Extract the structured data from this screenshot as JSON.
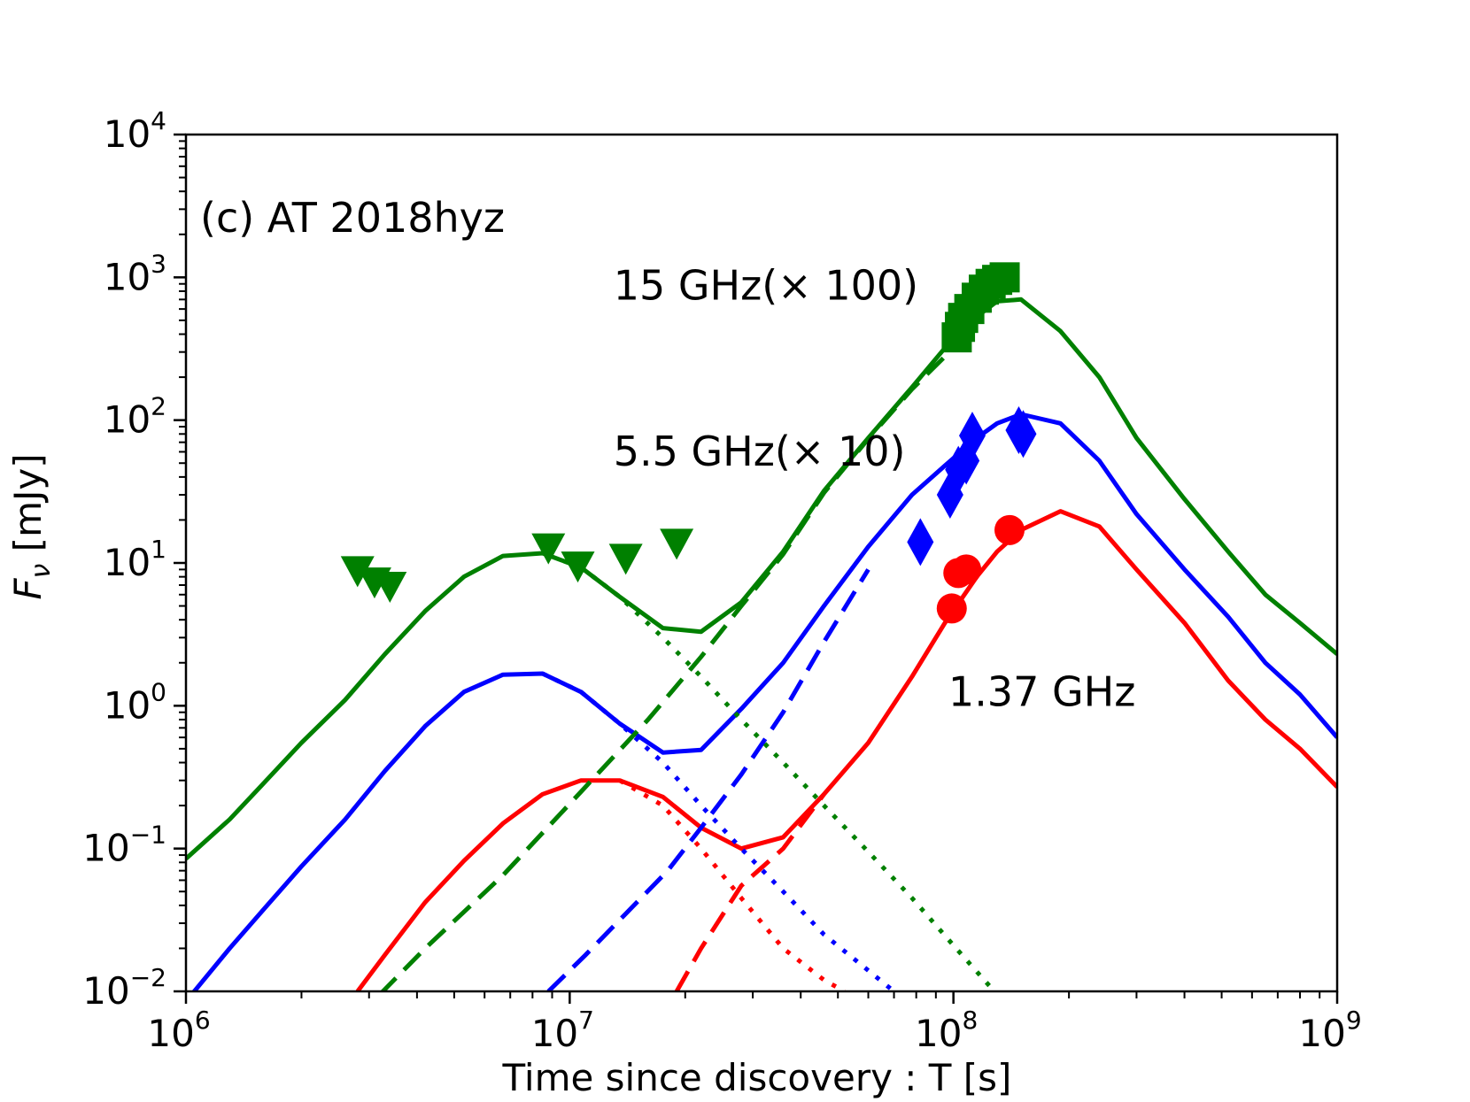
{
  "chart_data": {
    "type": "line",
    "title": "",
    "panel_label": "(c) AT 2018hyz",
    "xlabel": "Time since discovery : T [s]",
    "ylabel_symbol": "F",
    "ylabel_subscript": "ν",
    "ylabel_unit": " [mJy]",
    "xscale": "log",
    "yscale": "log",
    "xlim": [
      1000000,
      1000000000
    ],
    "ylim": [
      0.01,
      10000
    ],
    "x_ticks": [
      {
        "value": 1000000,
        "base": "10",
        "exp": "6"
      },
      {
        "value": 10000000,
        "base": "10",
        "exp": "7"
      },
      {
        "value": 100000000,
        "base": "10",
        "exp": "8"
      },
      {
        "value": 1000000000,
        "base": "10",
        "exp": "9"
      }
    ],
    "y_ticks": [
      {
        "value": 0.01,
        "base": "10",
        "exp": "−2"
      },
      {
        "value": 0.1,
        "base": "10",
        "exp": "−1"
      },
      {
        "value": 1,
        "base": "10",
        "exp": "0"
      },
      {
        "value": 10,
        "base": "10",
        "exp": "1"
      },
      {
        "value": 100,
        "base": "10",
        "exp": "2"
      },
      {
        "value": 1000,
        "base": "10",
        "exp": "3"
      },
      {
        "value": 10000,
        "base": "10",
        "exp": "4"
      }
    ],
    "series_labels": [
      {
        "text": "15 GHz(× 100)",
        "x": 13000000,
        "y": 700
      },
      {
        "text": "5.5 GHz(× 10)",
        "x": 13000000,
        "y": 48
      },
      {
        "text": "1.37 GHz",
        "x": 97000000,
        "y": 1.0
      }
    ],
    "series": [
      {
        "name": "15 GHz (× 100)",
        "color": "#008000",
        "model_total": {
          "x": [
            1000000,
            1300000,
            1600000,
            2000000,
            2600000,
            3300000,
            4200000,
            5300000,
            6700000,
            8500000,
            10700000,
            13500000,
            17500000,
            22000000,
            28000000,
            36000000,
            46000000,
            60000000,
            78000000,
            95000000,
            115000000,
            130000000,
            150000000,
            190000000,
            240000000,
            300000000,
            400000000,
            520000000,
            650000000,
            800000000,
            1000000000
          ],
          "y": [
            0.085,
            0.16,
            0.29,
            0.55,
            1.1,
            2.3,
            4.6,
            8.0,
            11.2,
            11.7,
            9.3,
            5.8,
            3.5,
            3.3,
            5.3,
            12,
            32,
            75,
            170,
            320,
            530,
            680,
            700,
            420,
            200,
            75,
            28,
            12,
            6,
            3.8,
            2.3
          ]
        },
        "model_early": {
          "x": [
            10700000,
            13500000,
            17500000,
            22000000,
            28000000,
            36000000,
            46000000,
            60000000,
            78000000,
            100000000,
            130000000
          ],
          "y": [
            9.3,
            5.8,
            3.0,
            1.6,
            0.8,
            0.4,
            0.2,
            0.095,
            0.045,
            0.021,
            0.0095
          ]
        },
        "model_late": {
          "x": [
            3200000,
            4200000,
            6700000,
            10700000,
            16000000,
            22000000,
            28000000,
            36000000,
            46000000,
            60000000,
            78000000,
            100000000
          ],
          "y": [
            0.0095,
            0.02,
            0.065,
            0.25,
            0.8,
            2.2,
            5.0,
            11.5,
            31,
            74,
            165,
            320
          ]
        },
        "observed_marker": "square",
        "observed": [
          {
            "x": 102000000,
            "y": 380
          },
          {
            "x": 104000000,
            "y": 450
          },
          {
            "x": 106000000,
            "y": 520
          },
          {
            "x": 110000000,
            "y": 600
          },
          {
            "x": 115000000,
            "y": 720
          },
          {
            "x": 120000000,
            "y": 820
          },
          {
            "x": 125000000,
            "y": 900
          },
          {
            "x": 130000000,
            "y": 960
          },
          {
            "x": 136000000,
            "y": 1000
          }
        ],
        "upper_limits_marker": "triangle-down",
        "upper_limits": [
          {
            "x": 2800000,
            "y": 9.0
          },
          {
            "x": 3100000,
            "y": 7.5
          },
          {
            "x": 3400000,
            "y": 7.0
          },
          {
            "x": 8800000,
            "y": 13
          },
          {
            "x": 10500000,
            "y": 9.7
          },
          {
            "x": 14000000,
            "y": 11
          },
          {
            "x": 19000000,
            "y": 14
          }
        ]
      },
      {
        "name": "5.5 GHz (× 10)",
        "color": "#0000ff",
        "model_total": {
          "x": [
            1000000,
            1300000,
            1600000,
            2000000,
            2600000,
            3300000,
            4200000,
            5300000,
            6700000,
            8500000,
            10700000,
            13500000,
            17500000,
            22000000,
            28000000,
            36000000,
            46000000,
            60000000,
            78000000,
            95000000,
            115000000,
            130000000,
            150000000,
            190000000,
            240000000,
            300000000,
            400000000,
            520000000,
            650000000,
            800000000,
            1000000000
          ],
          "y": [
            0.0085,
            0.02,
            0.038,
            0.075,
            0.16,
            0.35,
            0.72,
            1.25,
            1.65,
            1.68,
            1.25,
            0.75,
            0.47,
            0.49,
            0.95,
            2.0,
            5.0,
            13,
            30,
            48,
            75,
            95,
            110,
            95,
            52,
            22,
            9,
            4.2,
            2.0,
            1.2,
            0.6
          ]
        },
        "model_early": {
          "x": [
            8500000,
            10700000,
            13500000,
            17500000,
            22000000,
            28000000,
            36000000,
            46000000,
            60000000,
            70000000
          ],
          "y": [
            1.68,
            1.25,
            0.75,
            0.4,
            0.2,
            0.1,
            0.05,
            0.025,
            0.014,
            0.01
          ]
        },
        "model_late": {
          "x": [
            8800000,
            11000000,
            14000000,
            18000000,
            22000000,
            28000000,
            36000000,
            46000000,
            60000000
          ],
          "y": [
            0.01,
            0.018,
            0.035,
            0.07,
            0.14,
            0.33,
            0.9,
            2.8,
            9
          ]
        },
        "observed_marker": "diamond",
        "observed": [
          {
            "x": 82000000,
            "y": 14
          },
          {
            "x": 98000000,
            "y": 30
          },
          {
            "x": 103000000,
            "y": 45
          },
          {
            "x": 108000000,
            "y": 52
          },
          {
            "x": 112000000,
            "y": 78
          },
          {
            "x": 148000000,
            "y": 85
          },
          {
            "x": 152000000,
            "y": 80
          }
        ]
      },
      {
        "name": "1.37 GHz",
        "color": "#ff0000",
        "model_total": {
          "x": [
            2800000,
            3300000,
            4200000,
            5300000,
            6700000,
            8500000,
            10700000,
            13500000,
            17500000,
            22000000,
            28000000,
            36000000,
            46000000,
            60000000,
            78000000,
            95000000,
            115000000,
            130000000,
            150000000,
            190000000,
            240000000,
            300000000,
            400000000,
            520000000,
            650000000,
            800000000,
            1000000000
          ],
          "y": [
            0.01,
            0.018,
            0.042,
            0.082,
            0.15,
            0.24,
            0.3,
            0.3,
            0.23,
            0.14,
            0.1,
            0.12,
            0.24,
            0.55,
            1.6,
            3.8,
            8,
            12,
            17,
            23,
            18,
            9,
            3.8,
            1.5,
            0.8,
            0.5,
            0.27
          ]
        },
        "model_early": {
          "x": [
            13500000,
            17500000,
            22000000,
            28000000,
            36000000,
            46000000,
            52000000
          ],
          "y": [
            0.3,
            0.2,
            0.1,
            0.045,
            0.02,
            0.012,
            0.01
          ]
        },
        "model_late": {
          "x": [
            19000000,
            22000000,
            28000000,
            36000000,
            46000000
          ],
          "y": [
            0.01,
            0.02,
            0.055,
            0.1,
            0.24
          ]
        },
        "observed_marker": "circle",
        "observed": [
          {
            "x": 99000000,
            "y": 4.8
          },
          {
            "x": 103000000,
            "y": 8.5
          },
          {
            "x": 108000000,
            "y": 9
          },
          {
            "x": 140000000,
            "y": 17
          }
        ]
      }
    ]
  }
}
